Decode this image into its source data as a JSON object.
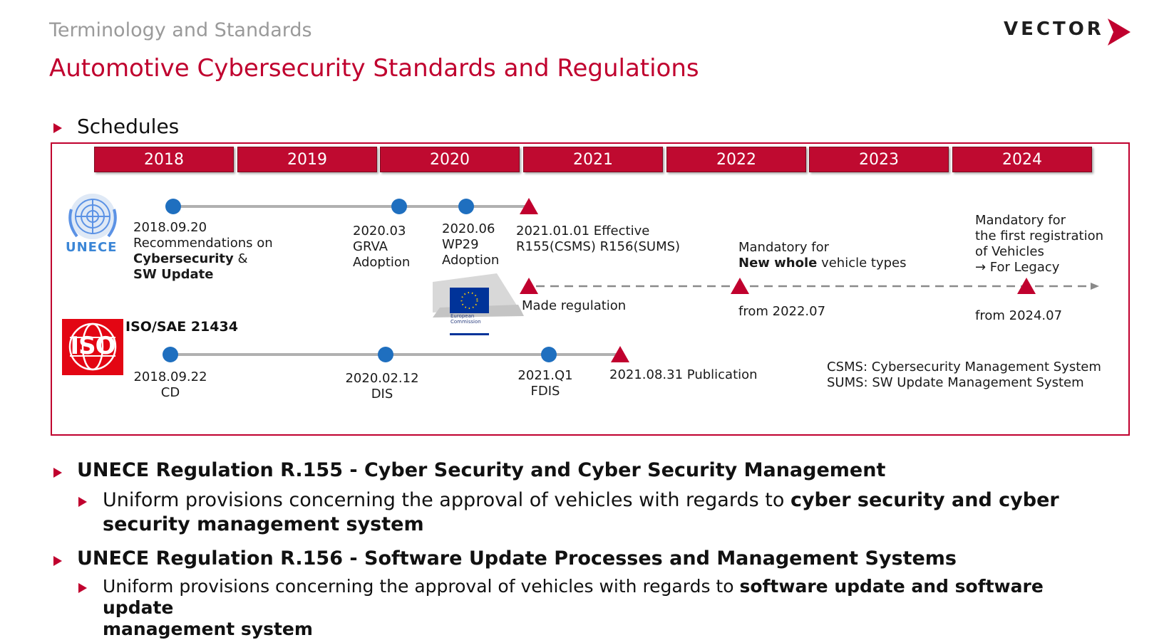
{
  "header": {
    "subtitle": "Terminology and Standards",
    "title": "Automotive Cybersecurity Standards and Regulations",
    "logo_text": "VECTOR"
  },
  "schedules_label": "Schedules",
  "years": [
    "2018",
    "2019",
    "2020",
    "2021",
    "2022",
    "2023",
    "2024"
  ],
  "unece": {
    "logo_label": "UNECE",
    "m1_date": "2018.09.20",
    "m1_line2": "Recommendations on",
    "m1_bold1": "Cybersecurity",
    "m1_amp": " &",
    "m1_bold2": "SW Update",
    "m2_date": "2020.03",
    "m2_line2": "GRVA",
    "m2_line3": "Adoption",
    "m3_date": "2020.06",
    "m3_line2": "WP29",
    "m3_line3": "Adoption",
    "m4_line1": "2021.01.01 Effective",
    "m4_line2": "R155(CSMS) R156(SUMS)",
    "made_regulation": "Made regulation",
    "eu_caption_1": "European",
    "eu_caption_2": "Commission",
    "mand1_line1": "Mandatory for",
    "mand1_bold": "New whole",
    "mand1_rest": " vehicle types",
    "mand1_from": "from 2022.07",
    "mand2_line1": "Mandatory for",
    "mand2_line2": "the first registration",
    "mand2_line3": "of Vehicles",
    "mand2_line4": "→ For Legacy",
    "mand2_from": "from 2024.07"
  },
  "iso": {
    "logo_label": "ISO",
    "title": "ISO/SAE 21434",
    "m1_date": "2018.09.22",
    "m1_label": "CD",
    "m2_date": "2020.02.12",
    "m2_label": "DIS",
    "m3_date": "2021.Q1",
    "m3_label": "FDIS",
    "m4_label": "2021.08.31 Publication"
  },
  "legend": {
    "csms": "CSMS: Cybersecurity Management System",
    "sums": "SUMS: SW Update Management System"
  },
  "bullets": {
    "r155_title": "UNECE Regulation R.155 - Cyber Security and Cyber Security Management",
    "r155_text": "Uniform provisions concerning the approval of vehicles with regards to ",
    "r155_bold_1": "cyber security and cyber",
    "r155_bold_2": "security management system",
    "r156_title": "UNECE Regulation R.156 - Software Update Processes and Management Systems",
    "r156_text": "Uniform provisions concerning the approval of vehicles with regards to ",
    "r156_bold_1": "software update and software update",
    "r156_bold_2": "management system"
  },
  "colors": {
    "accent": "#c0002e",
    "milestone": "#1f6fbf",
    "year_bar": "#bf0a30"
  }
}
